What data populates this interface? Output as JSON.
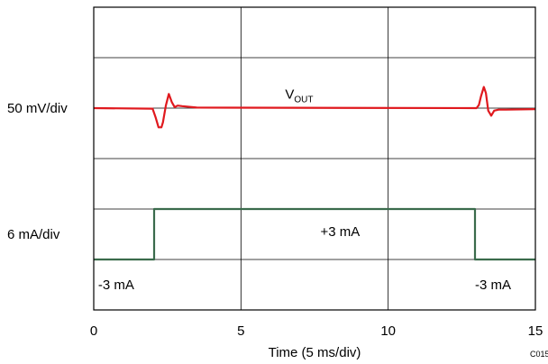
{
  "chart_data": {
    "type": "line",
    "xlabel": "Time (5 ms/div)",
    "x_ticks": [
      "0",
      "5",
      "10",
      "15"
    ],
    "xlim": [
      0,
      15
    ],
    "ylim": [
      0,
      6
    ],
    "figure_id": "C015",
    "grid": true,
    "scale_labels": [
      {
        "text": "50 mV/div",
        "y": 4
      },
      {
        "text": "6 mA/div",
        "y": 1.5
      }
    ],
    "annotations": [
      {
        "text": "V",
        "sub": "OUT",
        "x": 6.5,
        "y": 4.28
      },
      {
        "text": "+3 mA",
        "x": 7.7,
        "y": 1.55
      },
      {
        "text": "-3 mA",
        "x": 0.15,
        "y": 0.5
      },
      {
        "text": "-3 mA",
        "x": 12.95,
        "y": 0.5
      }
    ],
    "series": [
      {
        "color": "#e0191e",
        "x": [
          0,
          2.0,
          2.1,
          2.2,
          2.3,
          2.35,
          2.45,
          2.55,
          2.65,
          2.75,
          2.85,
          3.0,
          3.5,
          13.0,
          13.08,
          13.15,
          13.25,
          13.32,
          13.4,
          13.5,
          13.6,
          13.75,
          14.0,
          15
        ],
        "y": [
          4.0,
          3.99,
          3.82,
          3.62,
          3.62,
          3.72,
          4.05,
          4.28,
          4.12,
          4.02,
          4.05,
          4.04,
          4.01,
          4.0,
          4.06,
          4.23,
          4.42,
          4.3,
          3.95,
          3.85,
          3.95,
          3.97,
          3.97,
          3.98
        ]
      },
      {
        "color": "#3a6b4c",
        "x": [
          0,
          2.05,
          2.05,
          12.95,
          12.95,
          15
        ],
        "y": [
          1.0,
          1.0,
          2.0,
          2.0,
          1.0,
          1.0
        ]
      }
    ]
  }
}
